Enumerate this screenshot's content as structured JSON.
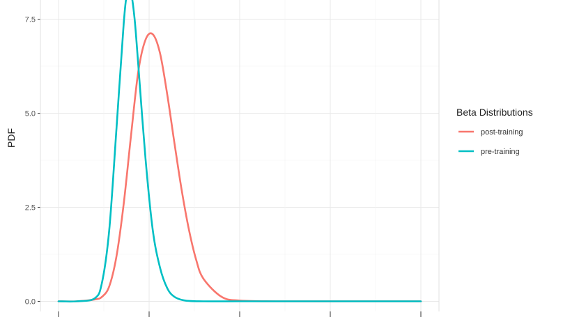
{
  "chart_data": {
    "type": "line",
    "title": "",
    "xlabel": "",
    "ylabel": "PDF",
    "xlim": [
      0,
      1
    ],
    "ylim": [
      0,
      8
    ],
    "y_ticks": [
      0.0,
      2.5,
      5.0,
      7.5
    ],
    "y_tick_labels": [
      "0.0",
      "2.5",
      "5.0",
      "7.5"
    ],
    "grid": true,
    "legend": {
      "title": "Beta Distributions",
      "position": "right",
      "entries": [
        "post-training",
        "pre-training"
      ]
    },
    "series": [
      {
        "name": "post-training",
        "color": "#F8766D",
        "x": [
          0.0,
          0.05,
          0.1,
          0.12,
          0.14,
          0.16,
          0.18,
          0.2,
          0.22,
          0.24,
          0.26,
          0.28,
          0.3,
          0.32,
          0.34,
          0.36,
          0.38,
          0.4,
          0.45,
          0.5,
          0.6,
          0.8,
          1.0
        ],
        "y": [
          0.0,
          0.0,
          0.05,
          0.12,
          0.4,
          1.2,
          2.6,
          4.4,
          6.1,
          6.95,
          7.1,
          6.6,
          5.5,
          4.2,
          2.95,
          1.9,
          1.1,
          0.6,
          0.12,
          0.02,
          0.0,
          0.0,
          0.0
        ]
      },
      {
        "name": "pre-training",
        "color": "#00BFC4",
        "x": [
          0.0,
          0.05,
          0.1,
          0.12,
          0.14,
          0.16,
          0.18,
          0.19,
          0.2,
          0.21,
          0.22,
          0.24,
          0.26,
          0.28,
          0.3,
          0.32,
          0.35,
          0.4,
          0.5,
          0.6,
          0.8,
          1.0
        ],
        "y": [
          0.0,
          0.0,
          0.08,
          0.5,
          1.9,
          4.6,
          7.4,
          8.2,
          8.2,
          7.5,
          6.3,
          3.8,
          1.9,
          0.9,
          0.35,
          0.12,
          0.02,
          0.0,
          0.0,
          0.0,
          0.0,
          0.0
        ]
      }
    ]
  }
}
